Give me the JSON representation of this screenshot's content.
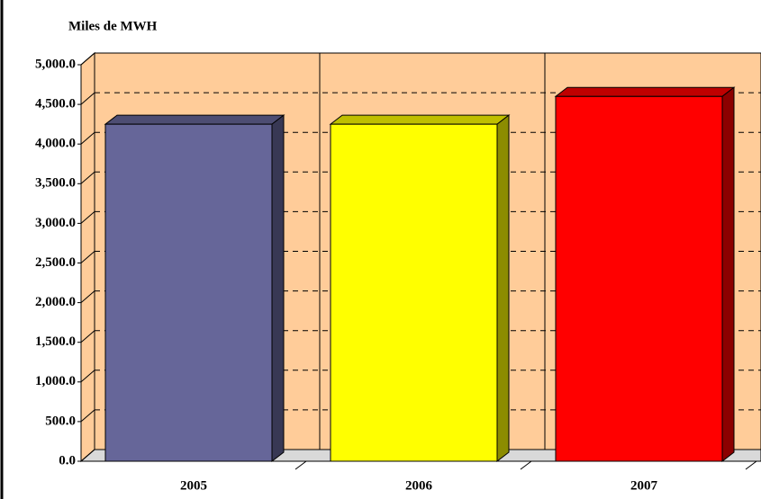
{
  "chart_data": {
    "type": "bar3d",
    "title": "Miles de MWH",
    "categories": [
      "2005",
      "2006",
      "2007"
    ],
    "values": [
      4250,
      4250,
      4600
    ],
    "colors": [
      "#666699",
      "#ffff00",
      "#ff0000"
    ],
    "ylim": [
      0,
      5000
    ],
    "yticks": [
      {
        "value": 0,
        "label": "0.0"
      },
      {
        "value": 500,
        "label": "500.0"
      },
      {
        "value": 1000,
        "label": "1,000.0"
      },
      {
        "value": 1500,
        "label": "1,500.0"
      },
      {
        "value": 2000,
        "label": "2,000.0"
      },
      {
        "value": 2500,
        "label": "2,500.0"
      },
      {
        "value": 3000,
        "label": "3,000.0"
      },
      {
        "value": 3500,
        "label": "3,500.0"
      },
      {
        "value": 4000,
        "label": "4,000.0"
      },
      {
        "value": 4500,
        "label": "4,500.0"
      },
      {
        "value": 5000,
        "label": "5,000.0"
      }
    ],
    "grid": true
  }
}
